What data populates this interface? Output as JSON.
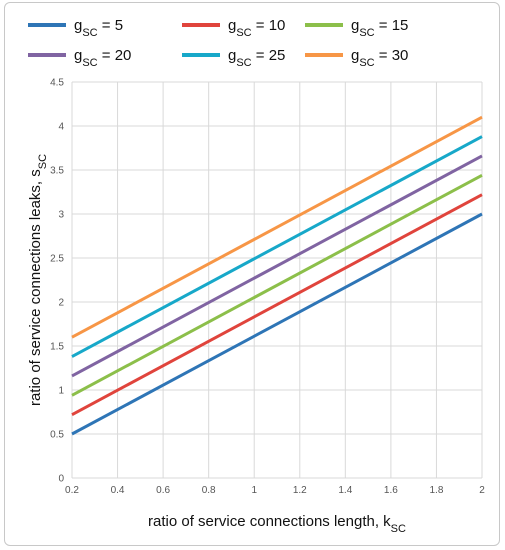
{
  "chart_data": {
    "type": "line",
    "xlabel": "ratio of service connections length, k",
    "xlabel_sub": "SC",
    "ylabel": "ratio of service connections leaks, s",
    "ylabel_sub": "SC",
    "xlim": [
      0.2,
      2
    ],
    "ylim": [
      0,
      4.5
    ],
    "x_ticks": [
      "0.2",
      "0.4",
      "0.6",
      "0.8",
      "1",
      "1.2",
      "1.4",
      "1.6",
      "1.8",
      "2"
    ],
    "y_ticks": [
      "0",
      "0.5",
      "1",
      "1.5",
      "2",
      "2.5",
      "3",
      "3.5",
      "4",
      "4.5"
    ],
    "grid": "vertical and horizontal",
    "legend_position": "top",
    "x": [
      0.2,
      2
    ],
    "series": [
      {
        "name_main": "g",
        "name_sub": "SC",
        "name_rest": " = 5",
        "color": "#2e75b6",
        "values": [
          0.5,
          3.0
        ]
      },
      {
        "name_main": "g",
        "name_sub": "SC",
        "name_rest": " = 10",
        "color": "#e0443c",
        "values": [
          0.72,
          3.22
        ]
      },
      {
        "name_main": "g",
        "name_sub": "SC",
        "name_rest": " = 15",
        "color": "#8cbf4a",
        "values": [
          0.94,
          3.44
        ]
      },
      {
        "name_main": "g",
        "name_sub": "SC",
        "name_rest": " = 20",
        "color": "#8064a2",
        "values": [
          1.16,
          3.66
        ]
      },
      {
        "name_main": "g",
        "name_sub": "SC",
        "name_rest": " = 25",
        "color": "#17a8c9",
        "values": [
          1.38,
          3.88
        ]
      },
      {
        "name_main": "g",
        "name_sub": "SC",
        "name_rest": " = 30",
        "color": "#f79646",
        "values": [
          1.6,
          4.1
        ]
      }
    ]
  }
}
